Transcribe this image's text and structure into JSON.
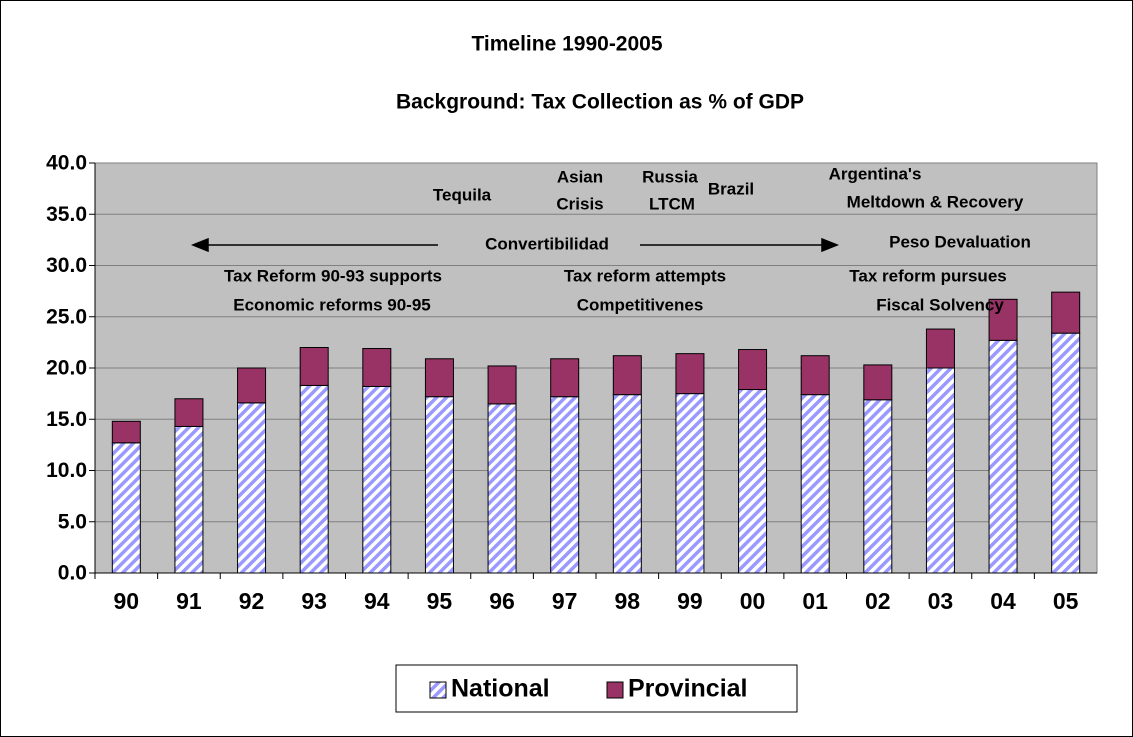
{
  "chart_data": {
    "type": "stacked_bar",
    "title": "Timeline 1990-2005",
    "subtitle": "Background: Tax Collection as % of GDP",
    "categories": [
      "90",
      "91",
      "92",
      "93",
      "94",
      "95",
      "96",
      "97",
      "98",
      "99",
      "00",
      "01",
      "02",
      "03",
      "04",
      "05"
    ],
    "series": [
      {
        "name": "National",
        "color": "#9999ff",
        "pattern": "diagonal-hatch",
        "values": [
          12.7,
          14.3,
          16.6,
          18.3,
          18.2,
          17.2,
          16.5,
          17.2,
          17.4,
          17.5,
          17.9,
          17.4,
          16.9,
          20.0,
          22.7,
          23.4
        ]
      },
      {
        "name": "Provincial",
        "color": "#993366",
        "values": [
          2.1,
          2.7,
          3.4,
          3.7,
          3.7,
          3.7,
          3.7,
          3.7,
          3.8,
          3.9,
          3.9,
          3.8,
          3.4,
          3.8,
          4.0,
          4.0
        ]
      }
    ],
    "ylim": [
      0,
      40
    ],
    "yticks": [
      {
        "value": 0,
        "label": "0.0"
      },
      {
        "value": 5,
        "label": "5.0"
      },
      {
        "value": 10,
        "label": "10.0"
      },
      {
        "value": 15,
        "label": "15.0"
      },
      {
        "value": 20,
        "label": "20.0"
      },
      {
        "value": 25,
        "label": "25.0"
      },
      {
        "value": 30,
        "label": "30.0"
      },
      {
        "value": 35,
        "label": "35.0"
      },
      {
        "value": 40,
        "label": "40.0"
      }
    ],
    "grid": true,
    "legend": "bottom",
    "annotations": [
      "Tequila",
      "Asian",
      "Crisis",
      "Russia",
      "LTCM",
      "Brazil",
      "Argentina's",
      "Meltdown & Recovery",
      "Convertibilidad",
      "Peso Devaluation",
      "Tax Reform 90-93 supports",
      "Economic reforms 90-95",
      "Tax reform attempts",
      "Competitivenes",
      "Tax reform pursues",
      "Fiscal Solvency"
    ]
  }
}
